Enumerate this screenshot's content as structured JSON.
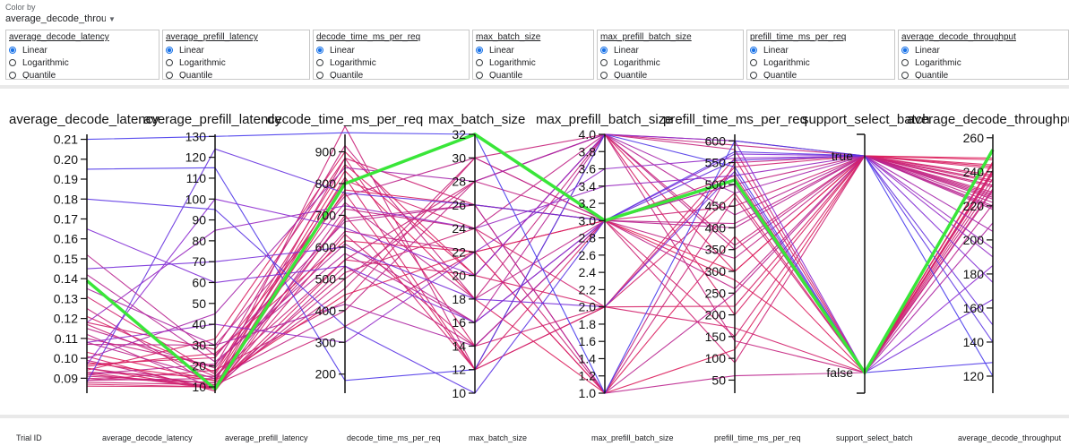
{
  "color_by": {
    "label": "Color by",
    "value": "average_decode_throughput"
  },
  "scale_options": [
    "Linear",
    "Logarithmic",
    "Quantile"
  ],
  "scale_controls": [
    {
      "metric": "average_decode_latency",
      "selected": "Linear"
    },
    {
      "metric": "average_prefill_latency",
      "selected": "Linear"
    },
    {
      "metric": "decode_time_ms_per_req",
      "selected": "Linear"
    },
    {
      "metric": "max_batch_size",
      "selected": "Linear"
    },
    {
      "metric": "max_prefill_batch_size",
      "selected": "Linear"
    },
    {
      "metric": "prefill_time_ms_per_req",
      "selected": "Linear"
    },
    {
      "metric": "average_decode_throughput",
      "selected": "Linear"
    }
  ],
  "chart_data": {
    "type": "parallel_coordinates",
    "axes": [
      {
        "name": "average_decode_latency",
        "ticks": [
          "0.09",
          "0.10",
          "0.11",
          "0.12",
          "0.13",
          "0.14",
          "0.15",
          "0.16",
          "0.17",
          "0.18",
          "0.19",
          "0.20",
          "0.21"
        ],
        "range": [
          0.0825,
          0.2125
        ]
      },
      {
        "name": "average_prefill_latency",
        "ticks": [
          "10",
          "20",
          "30",
          "40",
          "50",
          "60",
          "70",
          "80",
          "90",
          "100",
          "110",
          "120",
          "130"
        ],
        "range": [
          7,
          131
        ]
      },
      {
        "name": "decode_time_ms_per_req",
        "ticks": [
          "200",
          "300",
          "400",
          "500",
          "600",
          "700",
          "800",
          "900"
        ],
        "range": [
          140,
          955
        ]
      },
      {
        "name": "max_batch_size",
        "ticks": [
          "10",
          "12",
          "14",
          "16",
          "18",
          "20",
          "22",
          "24",
          "26",
          "28",
          "30",
          "32"
        ],
        "range": [
          10,
          32
        ]
      },
      {
        "name": "max_prefill_batch_size",
        "ticks": [
          "1.0",
          "1.2",
          "1.4",
          "1.6",
          "1.8",
          "2.0",
          "2.2",
          "2.4",
          "2.6",
          "2.8",
          "3.0",
          "3.2",
          "3.4",
          "3.6",
          "3.8",
          "4.0"
        ],
        "range": [
          1.0,
          4.0
        ]
      },
      {
        "name": "prefill_time_ms_per_req",
        "ticks": [
          "50",
          "100",
          "150",
          "200",
          "250",
          "300",
          "350",
          "400",
          "450",
          "500",
          "550",
          "600"
        ],
        "range": [
          20,
          615
        ]
      },
      {
        "name": "support_select_batch",
        "categorical": [
          "false",
          "true"
        ]
      },
      {
        "name": "average_decode_throughput",
        "ticks": [
          "120",
          "140",
          "160",
          "180",
          "200",
          "220",
          "240",
          "260"
        ],
        "range": [
          110,
          262
        ]
      }
    ],
    "color_range": [
      110,
      262
    ],
    "highlighted_trial": {
      "values": [
        0.139,
        9,
        800,
        32,
        3.0,
        510,
        "false",
        253
      ],
      "color": "#39e639"
    },
    "trials": [
      {
        "values": [
          0.091,
          12,
          980,
          12,
          4.0,
          600,
          "true",
          232
        ]
      },
      {
        "values": [
          0.095,
          9,
          780,
          26,
          3.0,
          280,
          "false",
          245
        ]
      },
      {
        "values": [
          0.093,
          15,
          650,
          22,
          1.0,
          550,
          "true",
          228
        ]
      },
      {
        "values": [
          0.118,
          28,
          880,
          14,
          3.0,
          150,
          "true",
          238
        ]
      },
      {
        "values": [
          0.087,
          10,
          560,
          20,
          2.0,
          480,
          "false",
          241
        ]
      },
      {
        "values": [
          0.112,
          9,
          720,
          24,
          4.0,
          350,
          "true",
          225
        ]
      },
      {
        "values": [
          0.089,
          18,
          430,
          30,
          3.0,
          520,
          "false",
          236
        ]
      },
      {
        "values": [
          0.103,
          13,
          840,
          18,
          1.0,
          120,
          "true",
          247
        ]
      },
      {
        "values": [
          0.092,
          21,
          610,
          16,
          3.0,
          400,
          "true",
          219
        ]
      },
      {
        "values": [
          0.125,
          10,
          500,
          28,
          4.0,
          580,
          "false",
          230
        ]
      },
      {
        "values": [
          0.097,
          24,
          770,
          12,
          2.0,
          220,
          "true",
          242
        ]
      },
      {
        "values": [
          0.088,
          11,
          350,
          22,
          3.0,
          450,
          "true",
          234
        ]
      },
      {
        "values": [
          0.108,
          14,
          690,
          26,
          1.0,
          60,
          "false",
          221
        ]
      },
      {
        "values": [
          0.094,
          33,
          900,
          20,
          4.0,
          300,
          "true",
          244
        ]
      },
      {
        "values": [
          0.099,
          9,
          540,
          14,
          3.0,
          500,
          "true",
          227
        ]
      },
      {
        "values": [
          0.131,
          16,
          810,
          24,
          2.0,
          170,
          "false",
          239
        ]
      },
      {
        "values": [
          0.09,
          12,
          470,
          30,
          4.0,
          590,
          "true",
          231
        ]
      },
      {
        "values": [
          0.115,
          19,
          740,
          18,
          3.0,
          260,
          "true",
          224
        ]
      },
      {
        "values": [
          0.096,
          26,
          620,
          22,
          1.0,
          380,
          "false",
          246
        ]
      },
      {
        "values": [
          0.092,
          10,
          880,
          26,
          3.0,
          90,
          "true",
          235
        ]
      },
      {
        "values": [
          0.142,
          22,
          580,
          16,
          4.0,
          430,
          "true",
          218
        ]
      },
      {
        "values": [
          0.101,
          8,
          700,
          12,
          2.0,
          560,
          "false",
          240
        ]
      },
      {
        "values": [
          0.089,
          14,
          400,
          28,
          3.0,
          330,
          "true",
          226
        ]
      },
      {
        "values": [
          0.121,
          17,
          860,
          20,
          4.0,
          200,
          "true",
          243
        ]
      },
      {
        "values": [
          0.095,
          11,
          520,
          24,
          1.0,
          470,
          "false",
          233
        ]
      },
      {
        "values": [
          0.107,
          30,
          760,
          30,
          3.0,
          410,
          "true",
          222
        ]
      },
      {
        "values": [
          0.093,
          9,
          640,
          14,
          2.0,
          540,
          "true",
          237
        ]
      },
      {
        "values": [
          0.11,
          20,
          920,
          18,
          4.0,
          140,
          "false",
          229
        ]
      },
      {
        "values": [
          0.098,
          13,
          450,
          22,
          3.0,
          300,
          "true",
          248
        ]
      },
      {
        "values": [
          0.152,
          25,
          680,
          26,
          1.0,
          250,
          "true",
          220
        ]
      },
      {
        "values": [
          0.086,
          10,
          820,
          12,
          3.0,
          510,
          "false",
          241
        ]
      },
      {
        "values": [
          0.117,
          15,
          560,
          28,
          4.0,
          360,
          "true",
          232
        ]
      },
      {
        "values": [
          0.118,
          85,
          730,
          24,
          3.4,
          520,
          "true",
          195
        ]
      },
      {
        "values": [
          0.097,
          100,
          660,
          20,
          4.0,
          600,
          "false",
          185
        ]
      },
      {
        "values": [
          0.165,
          60,
          540,
          16,
          3.0,
          570,
          "true",
          175
        ]
      },
      {
        "values": [
          0.108,
          40,
          300,
          22,
          3.6,
          560,
          "true",
          190
        ]
      },
      {
        "values": [
          0.21,
          130,
          960,
          32,
          1.0,
          600,
          "true",
          120
        ]
      },
      {
        "values": [
          0.195,
          115,
          180,
          12,
          4.0,
          540,
          "false",
          128
        ]
      },
      {
        "values": [
          0.088,
          124,
          770,
          26,
          3.0,
          555,
          "true",
          150
        ]
      },
      {
        "values": [
          0.145,
          70,
          600,
          18,
          2.0,
          530,
          "false",
          165
        ]
      },
      {
        "values": [
          0.18,
          95,
          350,
          10,
          3.0,
          575,
          "true",
          140
        ]
      },
      {
        "values": [
          0.1,
          45,
          850,
          28,
          4.0,
          480,
          "true",
          205
        ]
      },
      {
        "values": [
          0.135,
          30,
          420,
          14,
          3.0,
          500,
          "false",
          210
        ]
      }
    ]
  },
  "table_headers": [
    "Trial ID",
    "average_decode_latency",
    "average_prefill_latency",
    "decode_time_ms_per_req",
    "max_batch_size",
    "max_prefill_batch_size",
    "prefill_time_ms_per_req",
    "support_select_batch",
    "average_decode_throughput"
  ],
  "colors": {
    "low": "#3b3bf0",
    "mid": "#8e2bd0",
    "high": "#ef1b3f",
    "highlight": "#39e639",
    "accent": "#1a73e8"
  }
}
